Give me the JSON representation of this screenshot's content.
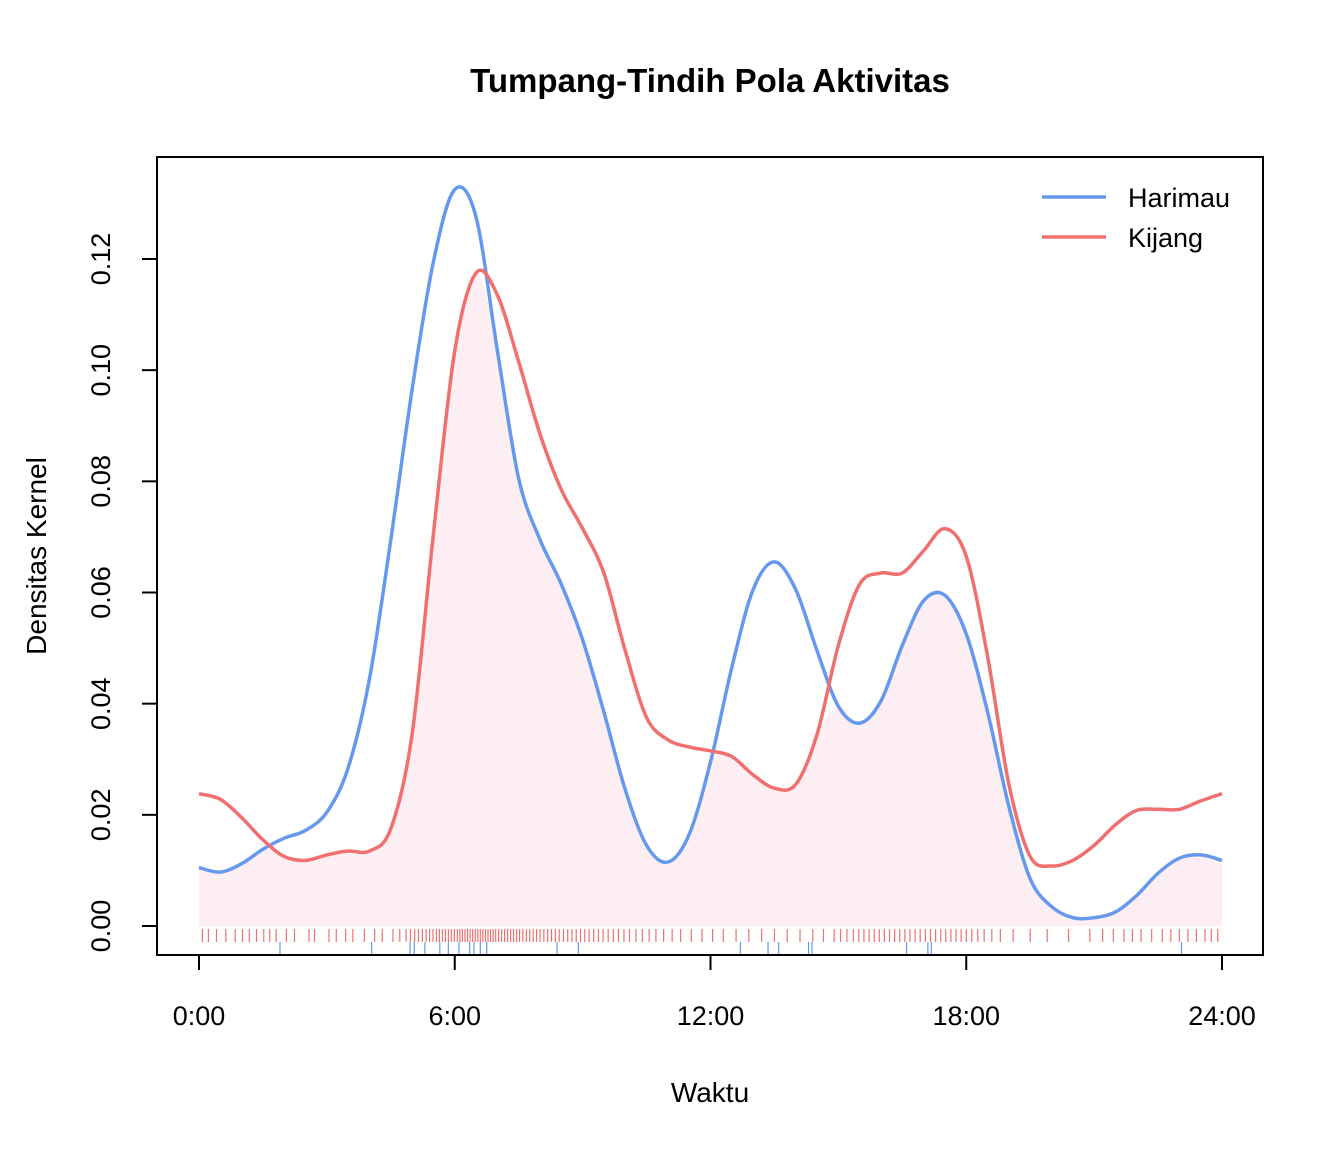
{
  "chart_data": {
    "type": "line",
    "title": "Tumpang-Tindih Pola Aktivitas",
    "xlabel": "Waktu",
    "ylabel": "Densitas Kernel",
    "xlim": [
      0,
      24
    ],
    "ylim": [
      0,
      0.13
    ],
    "x_ticks": [
      0,
      6,
      12,
      18,
      24
    ],
    "x_tick_labels": [
      "0:00",
      "6:00",
      "12:00",
      "18:00",
      "24:00"
    ],
    "y_ticks": [
      0,
      0.02,
      0.04,
      0.06,
      0.08,
      0.1,
      0.12
    ],
    "y_tick_labels": [
      "0.00",
      "0.02",
      "0.04",
      "0.06",
      "0.08",
      "0.10",
      "0.12"
    ],
    "legend_position": "top-right",
    "overlap_fill_color": "#fdeef3",
    "series": [
      {
        "name": "Harimau",
        "color": "#6699ee",
        "x": [
          0,
          0.5,
          1,
          1.5,
          2,
          2.5,
          3,
          3.5,
          4,
          4.5,
          5,
          5.5,
          6,
          6.5,
          7,
          7.5,
          8,
          8.5,
          9,
          9.5,
          10,
          10.5,
          11,
          11.5,
          12,
          12.5,
          13,
          13.5,
          14,
          14.5,
          15,
          15.5,
          16,
          16.5,
          17,
          17.5,
          18,
          18.5,
          19,
          19.5,
          20,
          20.5,
          21,
          21.5,
          22,
          22.5,
          23,
          23.5,
          24
        ],
        "y": [
          0.0105,
          0.0097,
          0.0112,
          0.0138,
          0.0158,
          0.0172,
          0.0205,
          0.0285,
          0.0445,
          0.0695,
          0.0965,
          0.1195,
          0.1325,
          0.1275,
          0.1035,
          0.0805,
          0.0695,
          0.0615,
          0.0515,
          0.0385,
          0.0245,
          0.0145,
          0.0115,
          0.0165,
          0.0295,
          0.0465,
          0.0605,
          0.0655,
          0.0605,
          0.0495,
          0.0395,
          0.0365,
          0.0405,
          0.0505,
          0.0585,
          0.0595,
          0.0525,
          0.0385,
          0.0215,
          0.0085,
          0.0035,
          0.0015,
          0.0015,
          0.0025,
          0.0055,
          0.0095,
          0.0122,
          0.0128,
          0.0118
        ]
      },
      {
        "name": "Kijang",
        "color": "#f07070",
        "x": [
          0,
          0.5,
          1,
          1.5,
          2,
          2.5,
          3,
          3.5,
          4,
          4.5,
          5,
          5.5,
          6,
          6.5,
          7,
          7.5,
          8,
          8.5,
          9,
          9.5,
          10,
          10.5,
          11,
          11.5,
          12,
          12.5,
          13,
          13.5,
          14,
          14.5,
          15,
          15.5,
          16,
          16.5,
          17,
          17.5,
          18,
          18.5,
          19,
          19.5,
          20,
          20.5,
          21,
          21.5,
          22,
          22.5,
          23,
          23.5,
          24
        ],
        "y": [
          0.0238,
          0.0228,
          0.0195,
          0.0155,
          0.0125,
          0.0118,
          0.0128,
          0.0135,
          0.0135,
          0.0175,
          0.0345,
          0.0705,
          0.1035,
          0.1175,
          0.1135,
          0.1015,
          0.0885,
          0.0785,
          0.0715,
          0.0635,
          0.0495,
          0.0375,
          0.0335,
          0.0322,
          0.0315,
          0.0305,
          0.0272,
          0.0248,
          0.0255,
          0.0345,
          0.0505,
          0.0615,
          0.0635,
          0.0635,
          0.0675,
          0.0715,
          0.0665,
          0.0485,
          0.0255,
          0.0125,
          0.0108,
          0.0118,
          0.0145,
          0.0182,
          0.0208,
          0.021,
          0.021,
          0.0225,
          0.0238
        ]
      }
    ],
    "rugs": [
      {
        "name": "Kijang",
        "color": "#f07070",
        "x": [
          0.08,
          0.22,
          0.41,
          0.63,
          0.85,
          1.02,
          1.18,
          1.35,
          1.52,
          1.66,
          1.81,
          2.05,
          2.24,
          2.58,
          2.71,
          3.05,
          3.22,
          3.44,
          3.61,
          3.88,
          4.12,
          4.3,
          4.55,
          4.71,
          4.86,
          4.96,
          5.06,
          5.15,
          5.24,
          5.33,
          5.41,
          5.49,
          5.57,
          5.64,
          5.71,
          5.78,
          5.85,
          5.92,
          5.99,
          6.06,
          6.12,
          6.18,
          6.24,
          6.3,
          6.36,
          6.42,
          6.48,
          6.54,
          6.6,
          6.66,
          6.72,
          6.78,
          6.84,
          6.9,
          6.96,
          7.03,
          7.1,
          7.17,
          7.24,
          7.31,
          7.38,
          7.45,
          7.52,
          7.6,
          7.68,
          7.76,
          7.84,
          7.92,
          8.0,
          8.09,
          8.18,
          8.27,
          8.36,
          8.45,
          8.55,
          8.65,
          8.75,
          8.85,
          8.95,
          9.05,
          9.15,
          9.26,
          9.37,
          9.48,
          9.6,
          9.72,
          9.84,
          9.97,
          10.1,
          10.25,
          10.4,
          10.56,
          10.72,
          10.9,
          11.1,
          11.3,
          11.55,
          11.8,
          12.05,
          12.3,
          12.6,
          12.9,
          13.2,
          13.5,
          13.8,
          14.1,
          14.4,
          14.65,
          14.9,
          15.05,
          15.2,
          15.35,
          15.48,
          15.6,
          15.72,
          15.84,
          15.96,
          16.08,
          16.2,
          16.32,
          16.44,
          16.56,
          16.68,
          16.8,
          16.92,
          17.04,
          17.16,
          17.28,
          17.4,
          17.52,
          17.64,
          17.76,
          17.88,
          18.0,
          18.13,
          18.27,
          18.42,
          18.6,
          18.8,
          19.1,
          19.5,
          19.9,
          20.4,
          20.9,
          21.2,
          21.45,
          21.7,
          21.9,
          22.1,
          22.35,
          22.6,
          22.8,
          23.0,
          23.2,
          23.4,
          23.6,
          23.75,
          23.9
        ]
      },
      {
        "name": "Harimau",
        "color": "#6699ee",
        "x": [
          1.9,
          4.05,
          4.95,
          5.05,
          5.3,
          5.65,
          5.85,
          6.1,
          6.35,
          6.45,
          6.6,
          6.75,
          8.4,
          8.9,
          12.7,
          13.35,
          13.6,
          14.3,
          14.38,
          16.6,
          17.1,
          17.18,
          23.05
        ]
      }
    ]
  }
}
